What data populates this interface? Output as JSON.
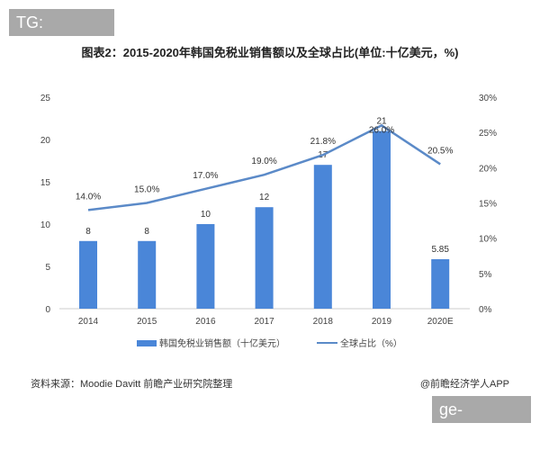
{
  "watermark_top": "TG: MYYJJPP",
  "watermark_bottom": "ge-game.com",
  "title": "图表2：2015-2020年韩国免税业销售额以及全球占比(单位:十亿美元，%)",
  "source": "资料来源：Moodie Davitt 前瞻产业研究院整理",
  "credit": "@前瞻经济学人APP",
  "chart_data": {
    "type": "bar+line",
    "title": "图表2：2015-2020年韩国免税业销售额以及全球占比(单位:十亿美元，%)",
    "categories": [
      "2014",
      "2015",
      "2016",
      "2017",
      "2018",
      "2019",
      "2020E"
    ],
    "series": [
      {
        "name": "韩国免税业销售额（十亿美元）",
        "type": "bar",
        "axis": "left",
        "values": [
          8,
          8,
          10,
          12,
          17,
          21,
          5.85
        ],
        "labels": [
          "8",
          "8",
          "10",
          "12",
          "17",
          "21",
          "5.85"
        ],
        "color": "#4a86d8"
      },
      {
        "name": "全球占比（%）",
        "type": "line",
        "axis": "right",
        "values": [
          14.0,
          15.0,
          17.0,
          19.0,
          21.8,
          26.0,
          20.5
        ],
        "labels": [
          "14.0%",
          "15.0%",
          "17.0%",
          "19.0%",
          "21.8%",
          "26.0%",
          "20.5%"
        ],
        "color": "#5b8ac8"
      }
    ],
    "y_left": {
      "range": [
        0,
        25
      ],
      "ticks": [
        "0",
        "5",
        "10",
        "15",
        "20",
        "25"
      ]
    },
    "y_right": {
      "range": [
        0,
        30
      ],
      "ticks": [
        "0%",
        "5%",
        "10%",
        "15%",
        "20%",
        "25%",
        "30%"
      ]
    },
    "grid": false,
    "legend": "bottom"
  }
}
